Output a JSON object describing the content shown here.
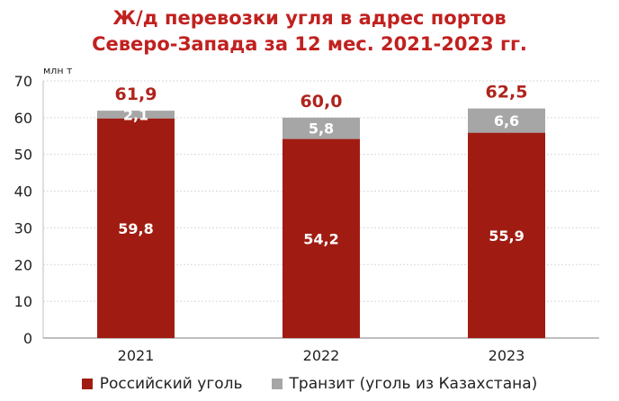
{
  "title_line1": "Ж/д перевозки угля в адрес портов",
  "title_line2": "Северо-Запада за 12 мес. 2021-2023 гг.",
  "colors": {
    "russian": "#a01c12",
    "transit": "#a6a6a6",
    "total_label": "#b0231c",
    "title": "#c0211f"
  },
  "chart_data": {
    "type": "bar",
    "stacked": true,
    "title": "Ж/д перевозки угля в адрес портов Северо-Запада за 12 мес. 2021-2023 гг.",
    "unit": "млн т",
    "categories": [
      "2021",
      "2022",
      "2023"
    ],
    "series": [
      {
        "name": "Российский уголь",
        "values": [
          59.8,
          54.2,
          55.9
        ],
        "labels": [
          "59,8",
          "54,2",
          "55,9"
        ]
      },
      {
        "name": "Транзит (уголь из Казахстана)",
        "values": [
          2.1,
          5.8,
          6.6
        ],
        "labels": [
          "2,1",
          "5,8",
          "6,6"
        ]
      }
    ],
    "totals": [
      61.9,
      60.0,
      62.5
    ],
    "total_labels": [
      "61,9",
      "60,0",
      "62,5"
    ],
    "ylim": [
      0,
      70
    ],
    "yticks": [
      0,
      10,
      20,
      30,
      40,
      50,
      60,
      70
    ],
    "grid": true,
    "legend_position": "bottom"
  }
}
